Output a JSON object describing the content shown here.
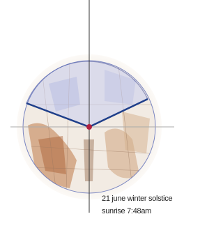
{
  "caption": {
    "lines": [
      "21 june winter solstice",
      "sunrise 7:48am"
    ]
  }
}
